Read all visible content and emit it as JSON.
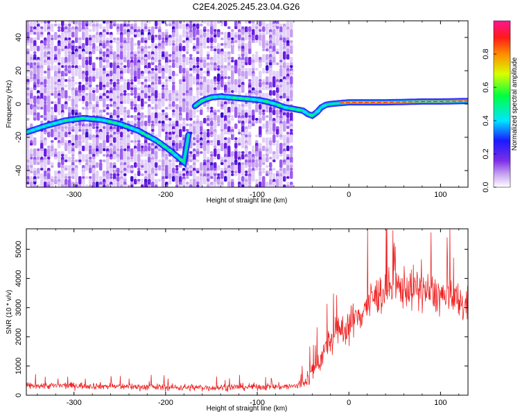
{
  "title": "C2E4.2025.245.23.04.G26",
  "chart_data": [
    {
      "type": "heatmap",
      "name": "spectrogram",
      "xlabel": "Height of straight line (km)",
      "ylabel": "Frequency (Hz)",
      "xlim": [
        -352,
        130
      ],
      "ylim": [
        -50,
        50
      ],
      "xticks": [
        -300,
        -200,
        -100,
        0,
        100
      ],
      "xtick_labels": [
        "-300",
        "-200",
        "-100",
        "0",
        "100"
      ],
      "yticks": [
        -40,
        -20,
        0,
        20,
        40
      ],
      "ytick_labels": [
        "-40",
        "-20",
        "0",
        "20",
        "40"
      ],
      "noise_region_x": [
        -352,
        -62
      ],
      "ridge": {
        "x": [
          -352,
          -330,
          -310,
          -290,
          -270,
          -250,
          -230,
          -210,
          -195,
          -180,
          -170,
          -160,
          -150,
          -140,
          -130,
          -120,
          -110,
          -100,
          -90,
          -80,
          -70,
          -60,
          -50,
          -45,
          -40,
          -35,
          -30,
          -25,
          -20,
          -10,
          0,
          20,
          40,
          60,
          80,
          100,
          130
        ],
        "y": [
          -17,
          -13,
          -10,
          -8.5,
          -9.5,
          -12,
          -16,
          -22,
          -28,
          -35,
          -2,
          2,
          4,
          4.5,
          4,
          3.5,
          3,
          2.5,
          1.5,
          0,
          -2,
          -3,
          -4,
          -6,
          -7,
          -5,
          -2,
          -0.5,
          0,
          0.5,
          1,
          1,
          1,
          1.2,
          1.5,
          1.5,
          1.8
        ]
      },
      "colorbar": {
        "label": "Normalized spectral amplitude",
        "range": [
          0.0,
          1.0
        ],
        "ticks": [
          0.0,
          0.2,
          0.4,
          0.6,
          0.8
        ],
        "tick_labels": [
          "0.0",
          "0.2",
          "0.4",
          "0.6",
          "0.8"
        ],
        "colors": [
          "#ffffff",
          "#c6a0f0",
          "#7c2ee8",
          "#1a1aff",
          "#00e6ff",
          "#00ff40",
          "#d8ff00",
          "#ff8c00",
          "#ff1a1a",
          "#ff1493"
        ]
      }
    },
    {
      "type": "line",
      "name": "snr",
      "xlabel": "Height of straight line (km)",
      "ylabel": "SNR (10 * v/v)",
      "xlim": [
        -352,
        130
      ],
      "ylim": [
        0,
        5700
      ],
      "xticks": [
        -300,
        -200,
        -100,
        0,
        100
      ],
      "xtick_labels": [
        "-300",
        "-200",
        "-100",
        "0",
        "100"
      ],
      "yticks": [
        0,
        1000,
        2000,
        3000,
        4000,
        5000
      ],
      "ytick_labels": [
        "0",
        "1000",
        "2000",
        "3000",
        "4000",
        "5000"
      ],
      "color": "#ee2222",
      "trend": {
        "x": [
          -352,
          -300,
          -250,
          -200,
          -150,
          -100,
          -60,
          -50,
          -40,
          -30,
          -20,
          -10,
          0,
          10,
          20,
          30,
          40,
          60,
          80,
          100,
          110,
          120,
          130
        ],
        "y": [
          320,
          330,
          300,
          270,
          260,
          290,
          300,
          400,
          800,
          1300,
          1900,
          2200,
          2400,
          2700,
          3100,
          3400,
          3600,
          3700,
          3600,
          3400,
          3300,
          3200,
          3000
        ]
      },
      "spread": {
        "x": [
          -352,
          -60,
          -40,
          -20,
          0,
          30,
          60,
          90,
          130
        ],
        "y": [
          150,
          160,
          500,
          700,
          800,
          900,
          950,
          900,
          850
        ]
      }
    }
  ]
}
